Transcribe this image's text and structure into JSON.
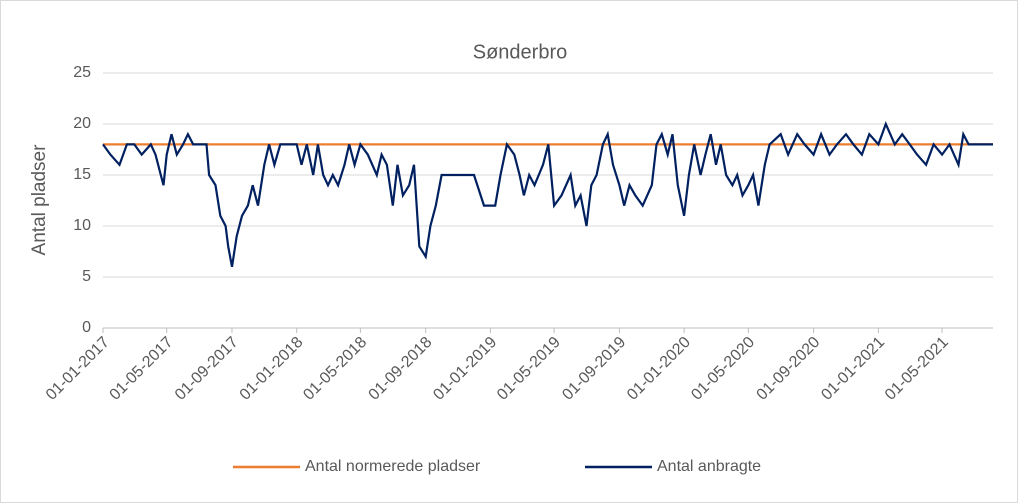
{
  "chart_data": {
    "type": "line",
    "title": "Sønderbro",
    "ylabel": "Antal pladser",
    "xlim": [
      "2017-01-01",
      "2021-08-05"
    ],
    "xticks": [
      {
        "value": "2017-01-01",
        "label": "01-01-2017"
      },
      {
        "value": "2017-05-01",
        "label": "01-05-2017"
      },
      {
        "value": "2017-09-01",
        "label": "01-09-2017"
      },
      {
        "value": "2018-01-01",
        "label": "01-01-2018"
      },
      {
        "value": "2018-05-01",
        "label": "01-05-2018"
      },
      {
        "value": "2018-09-01",
        "label": "01-09-2018"
      },
      {
        "value": "2019-01-01",
        "label": "01-01-2019"
      },
      {
        "value": "2019-05-01",
        "label": "01-05-2019"
      },
      {
        "value": "2019-09-01",
        "label": "01-09-2019"
      },
      {
        "value": "2020-01-01",
        "label": "01-01-2020"
      },
      {
        "value": "2020-05-01",
        "label": "01-05-2020"
      },
      {
        "value": "2020-09-01",
        "label": "01-09-2020"
      },
      {
        "value": "2021-01-01",
        "label": "01-01-2021"
      },
      {
        "value": "2021-05-01",
        "label": "01-05-2021"
      }
    ],
    "ylim": [
      0,
      25
    ],
    "yticks": [
      0,
      5,
      10,
      15,
      20,
      25
    ],
    "grid": true,
    "legend": "bottom",
    "series": [
      {
        "name": "Antal normerede pladser",
        "color": "#ed7d31",
        "x": [
          "2017-01-01",
          "2021-08-05"
        ],
        "values": [
          18,
          18
        ]
      },
      {
        "name": "Antal anbragte",
        "color": "#002060",
        "x": [
          "2017-01-01",
          "2017-01-15",
          "2017-02-01",
          "2017-02-15",
          "2017-03-01",
          "2017-03-15",
          "2017-04-01",
          "2017-04-10",
          "2017-04-20",
          "2017-04-25",
          "2017-05-01",
          "2017-05-10",
          "2017-05-20",
          "2017-06-01",
          "2017-06-10",
          "2017-06-20",
          "2017-07-01",
          "2017-07-15",
          "2017-07-20",
          "2017-08-01",
          "2017-08-10",
          "2017-08-20",
          "2017-08-25",
          "2017-09-01",
          "2017-09-10",
          "2017-09-20",
          "2017-10-01",
          "2017-10-10",
          "2017-10-20",
          "2017-11-01",
          "2017-11-10",
          "2017-11-20",
          "2017-12-01",
          "2017-12-15",
          "2018-01-01",
          "2018-01-10",
          "2018-01-20",
          "2018-02-01",
          "2018-02-10",
          "2018-02-20",
          "2018-03-01",
          "2018-03-10",
          "2018-03-20",
          "2018-04-01",
          "2018-04-10",
          "2018-04-20",
          "2018-05-01",
          "2018-05-15",
          "2018-06-01",
          "2018-06-10",
          "2018-06-20",
          "2018-07-01",
          "2018-07-10",
          "2018-07-20",
          "2018-08-01",
          "2018-08-10",
          "2018-08-20",
          "2018-09-01",
          "2018-09-10",
          "2018-09-20",
          "2018-10-01",
          "2018-11-01",
          "2018-12-01",
          "2018-12-20",
          "2019-01-10",
          "2019-01-20",
          "2019-02-01",
          "2019-02-15",
          "2019-02-25",
          "2019-03-05",
          "2019-03-15",
          "2019-03-25",
          "2019-04-10",
          "2019-04-20",
          "2019-05-01",
          "2019-05-15",
          "2019-06-01",
          "2019-06-10",
          "2019-06-20",
          "2019-07-01",
          "2019-07-10",
          "2019-07-20",
          "2019-08-01",
          "2019-08-10",
          "2019-08-20",
          "2019-09-01",
          "2019-09-10",
          "2019-09-20",
          "2019-10-01",
          "2019-10-15",
          "2019-11-01",
          "2019-11-10",
          "2019-11-20",
          "2019-12-01",
          "2019-12-10",
          "2019-12-20",
          "2020-01-01",
          "2020-01-10",
          "2020-01-20",
          "2020-02-01",
          "2020-02-10",
          "2020-02-20",
          "2020-03-01",
          "2020-03-10",
          "2020-03-20",
          "2020-04-01",
          "2020-04-10",
          "2020-04-20",
          "2020-05-01",
          "2020-05-10",
          "2020-05-20",
          "2020-06-01",
          "2020-06-10",
          "2020-07-01",
          "2020-07-15",
          "2020-08-01",
          "2020-08-15",
          "2020-09-01",
          "2020-09-15",
          "2020-10-01",
          "2020-10-15",
          "2020-11-01",
          "2020-11-15",
          "2020-12-01",
          "2020-12-15",
          "2021-01-01",
          "2021-01-15",
          "2021-02-01",
          "2021-02-15",
          "2021-03-01",
          "2021-03-15",
          "2021-04-01",
          "2021-04-15",
          "2021-05-01",
          "2021-05-15",
          "2021-06-01",
          "2021-06-10",
          "2021-06-20",
          "2021-07-01",
          "2021-08-05"
        ],
        "values": [
          18,
          17,
          16,
          18,
          18,
          17,
          18,
          17,
          15,
          14,
          17,
          19,
          17,
          18,
          19,
          18,
          18,
          18,
          15,
          14,
          11,
          10,
          8,
          6,
          9,
          11,
          12,
          14,
          12,
          16,
          18,
          16,
          18,
          18,
          18,
          16,
          18,
          15,
          18,
          15,
          14,
          15,
          14,
          16,
          18,
          16,
          18,
          17,
          15,
          17,
          16,
          12,
          16,
          13,
          14,
          16,
          8,
          7,
          10,
          12,
          15,
          15,
          15,
          12,
          12,
          15,
          18,
          17,
          15,
          13,
          15,
          14,
          16,
          18,
          12,
          13,
          15,
          12,
          13,
          10,
          14,
          15,
          18,
          19,
          16,
          14,
          12,
          14,
          13,
          12,
          14,
          18,
          19,
          17,
          19,
          14,
          11,
          15,
          18,
          15,
          17,
          19,
          16,
          18,
          15,
          14,
          15,
          13,
          14,
          15,
          12,
          16,
          18,
          19,
          17,
          19,
          18,
          17,
          19,
          17,
          18,
          19,
          18,
          17,
          19,
          18,
          20,
          18,
          19,
          18,
          17,
          16,
          18,
          17,
          18,
          16,
          19,
          18,
          18,
          18
        ]
      }
    ]
  }
}
